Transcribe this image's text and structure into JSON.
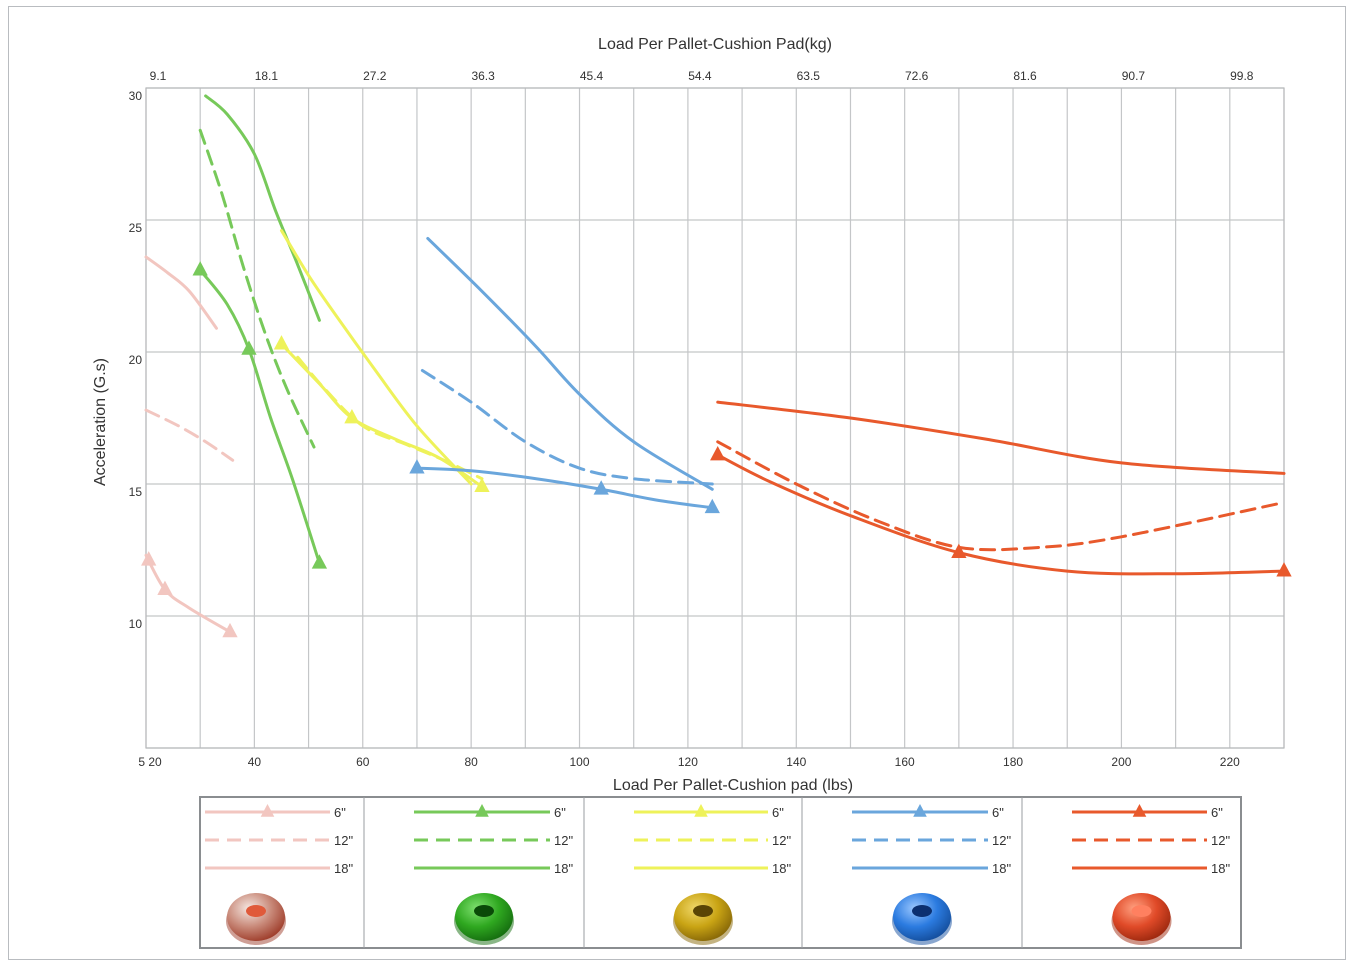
{
  "chart_data": {
    "type": "line",
    "xlabel": "Load Per Pallet-Cushion pad (lbs)",
    "x2label": "Load Per Pallet-Cushion Pad(kg)",
    "ylabel": "Acceleration (G.s)",
    "xlim": [
      20,
      230
    ],
    "ylim": [
      5,
      30
    ],
    "grid": true,
    "x_ticks": [
      {
        "v": 20,
        "label": "5 20"
      },
      {
        "v": 40,
        "label": "40"
      },
      {
        "v": 60,
        "label": "60"
      },
      {
        "v": 80,
        "label": "80"
      },
      {
        "v": 100,
        "label": "100"
      },
      {
        "v": 120,
        "label": "120"
      },
      {
        "v": 140,
        "label": "140"
      },
      {
        "v": 160,
        "label": "160"
      },
      {
        "v": 180,
        "label": "180"
      },
      {
        "v": 200,
        "label": "200"
      },
      {
        "v": 220,
        "label": "220"
      }
    ],
    "x2_ticks": [
      {
        "v": 20,
        "label": "9.1"
      },
      {
        "v": 40,
        "label": "18.1"
      },
      {
        "v": 60,
        "label": "27.2"
      },
      {
        "v": 80,
        "label": "36.3"
      },
      {
        "v": 100,
        "label": "45.4"
      },
      {
        "v": 120,
        "label": "54.4"
      },
      {
        "v": 140,
        "label": "63.5"
      },
      {
        "v": 160,
        "label": "72.6"
      },
      {
        "v": 180,
        "label": "81.6"
      },
      {
        "v": 200,
        "label": "90.7"
      },
      {
        "v": 220,
        "label": "99.8"
      }
    ],
    "y_ticks": [
      {
        "v": 10,
        "label": "10"
      },
      {
        "v": 15,
        "label": "15"
      },
      {
        "v": 20,
        "label": "20"
      },
      {
        "v": 25,
        "label": "25"
      },
      {
        "v": 30,
        "label": "30"
      }
    ],
    "gridlines_x": [
      20,
      30,
      40,
      50,
      60,
      70,
      80,
      90,
      100,
      110,
      120,
      130,
      140,
      150,
      160,
      170,
      180,
      190,
      200,
      210,
      220,
      230
    ],
    "gridlines_y": [
      5,
      10,
      15,
      20,
      25,
      30
    ],
    "groups": [
      {
        "color": "#f2c6c0",
        "series": [
          {
            "name": "6\"",
            "dash": "solid",
            "markers": [
              20.5,
              23.5,
              35.5
            ],
            "points": [
              [
                20,
                12.3
              ],
              [
                23.5,
                11.0
              ],
              [
                28,
                10.3
              ],
              [
                35.5,
                9.4
              ]
            ]
          },
          {
            "name": "12\"",
            "dash": "dashed",
            "markers": [],
            "points": [
              [
                20,
                17.8
              ],
              [
                26,
                17.2
              ],
              [
                31,
                16.6
              ],
              [
                36,
                15.9
              ]
            ]
          },
          {
            "name": "18\"",
            "dash": "solid",
            "markers": [],
            "points": [
              [
                20,
                23.6
              ],
              [
                24,
                23.0
              ],
              [
                28,
                22.3
              ],
              [
                33,
                20.9
              ]
            ]
          }
        ]
      },
      {
        "color": "#77c95a",
        "series": [
          {
            "name": "6\"",
            "dash": "solid",
            "markers": [
              30,
              39,
              52
            ],
            "points": [
              [
                30,
                23.1
              ],
              [
                35,
                21.8
              ],
              [
                39,
                20.1
              ],
              [
                43,
                17.5
              ],
              [
                47,
                15.2
              ],
              [
                52,
                12.0
              ]
            ]
          },
          {
            "name": "12\"",
            "dash": "dashed",
            "markers": [],
            "points": [
              [
                30,
                28.4
              ],
              [
                34,
                26.0
              ],
              [
                38,
                23.2
              ],
              [
                42,
                20.7
              ],
              [
                46,
                18.6
              ],
              [
                51,
                16.4
              ]
            ]
          },
          {
            "name": "18\"",
            "dash": "solid",
            "markers": [],
            "points": [
              [
                31,
                29.7
              ],
              [
                35,
                29.0
              ],
              [
                40,
                27.5
              ],
              [
                44,
                25.3
              ],
              [
                48,
                23.3
              ],
              [
                52,
                21.2
              ]
            ]
          }
        ]
      },
      {
        "color": "#eef25a",
        "series": [
          {
            "name": "6\"",
            "dash": "solid",
            "markers": [
              45,
              58,
              82
            ],
            "points": [
              [
                45,
                20.3
              ],
              [
                52,
                18.8
              ],
              [
                58,
                17.5
              ],
              [
                66,
                16.7
              ],
              [
                74,
                16.0
              ],
              [
                82,
                14.9
              ]
            ]
          },
          {
            "name": "12\"",
            "dash": "dashed",
            "markers": [],
            "points": [
              [
                48,
                19.8
              ],
              [
                53,
                18.6
              ],
              [
                60,
                17.2
              ],
              [
                68,
                16.5
              ],
              [
                75,
                15.9
              ],
              [
                82,
                15.2
              ]
            ]
          },
          {
            "name": "18\"",
            "dash": "solid",
            "markers": [],
            "points": [
              [
                45,
                24.6
              ],
              [
                50,
                22.9
              ],
              [
                55,
                21.4
              ],
              [
                62,
                19.4
              ],
              [
                70,
                17.2
              ],
              [
                80,
                15.0
              ]
            ]
          }
        ]
      },
      {
        "color": "#6aa6dc",
        "series": [
          {
            "name": "6\"",
            "dash": "solid",
            "markers": [
              70,
              104,
              124.5
            ],
            "points": [
              [
                70,
                15.6
              ],
              [
                80,
                15.5
              ],
              [
                92,
                15.2
              ],
              [
                104,
                14.8
              ],
              [
                114,
                14.4
              ],
              [
                124.5,
                14.1
              ]
            ]
          },
          {
            "name": "12\"",
            "dash": "dashed",
            "markers": [],
            "points": [
              [
                71,
                19.3
              ],
              [
                80,
                18.1
              ],
              [
                90,
                16.6
              ],
              [
                100,
                15.6
              ],
              [
                110,
                15.2
              ],
              [
                124.5,
                15.0
              ]
            ]
          },
          {
            "name": "18\"",
            "dash": "solid",
            "markers": [],
            "points": [
              [
                72,
                24.3
              ],
              [
                82,
                22.3
              ],
              [
                92,
                20.2
              ],
              [
                100,
                18.4
              ],
              [
                110,
                16.6
              ],
              [
                124.5,
                14.8
              ]
            ]
          }
        ]
      },
      {
        "color": "#e8592c",
        "series": [
          {
            "name": "6\"",
            "dash": "solid",
            "markers": [
              125.5,
              170,
              230
            ],
            "points": [
              [
                125.5,
                16.1
              ],
              [
                135,
                15.1
              ],
              [
                150,
                13.8
              ],
              [
                170,
                12.4
              ],
              [
                190,
                11.7
              ],
              [
                210,
                11.6
              ],
              [
                230,
                11.7
              ]
            ]
          },
          {
            "name": "12\"",
            "dash": "dashed",
            "markers": [],
            "points": [
              [
                125.5,
                16.6
              ],
              [
                140,
                15.0
              ],
              [
                155,
                13.6
              ],
              [
                170,
                12.6
              ],
              [
                185,
                12.6
              ],
              [
                200,
                13.0
              ],
              [
                230,
                14.3
              ]
            ]
          },
          {
            "name": "18\"",
            "dash": "solid",
            "markers": [],
            "points": [
              [
                125.5,
                18.1
              ],
              [
                150,
                17.5
              ],
              [
                175,
                16.7
              ],
              [
                200,
                15.8
              ],
              [
                230,
                15.4
              ]
            ]
          }
        ]
      }
    ]
  },
  "legend": {
    "labels": [
      "6\"",
      "12\"",
      "18\""
    ],
    "icons": [
      "pink-cushion-pad-icon",
      "green-cushion-pad-icon",
      "yellow-cushion-pad-icon",
      "blue-cushion-pad-icon",
      "red-cushion-pad-icon"
    ],
    "icon_colors": [
      {
        "base": "#c98a7a",
        "light": "#f5e8e2",
        "dark": "#a0402e",
        "hole": "#e05a3a"
      },
      {
        "base": "#2fa820",
        "light": "#7fe070",
        "dark": "#167010",
        "hole": "#0a4a08"
      },
      {
        "base": "#c9a414",
        "light": "#f0d86a",
        "dark": "#8a6a08",
        "hole": "#5a4505"
      },
      {
        "base": "#2b7be0",
        "light": "#9cc8ff",
        "dark": "#1550a0",
        "hole": "#0c3070"
      },
      {
        "base": "#e04a28",
        "light": "#ffa080",
        "dark": "#a02a10",
        "hole": "#ff8060"
      }
    ]
  }
}
